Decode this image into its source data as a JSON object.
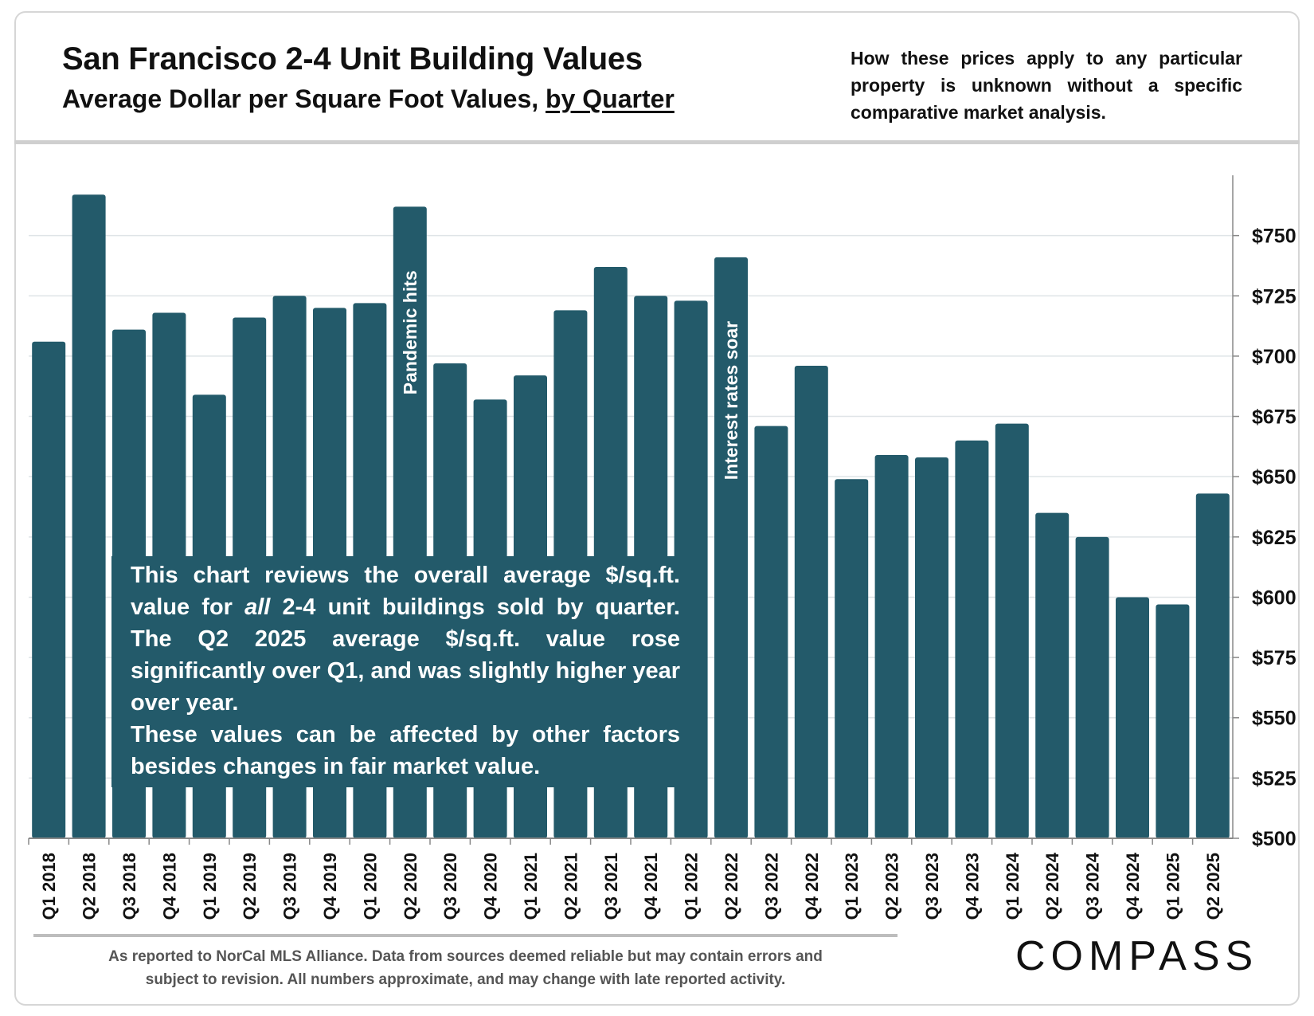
{
  "header": {
    "title": "San Francisco 2-4 Unit Building Values",
    "subtitle_prefix": "Average Dollar per Square Foot Values, ",
    "subtitle_underlined": "by Quarter",
    "disclaimer": "How these prices apply to any particular property is unknown without a specific comparative market analysis."
  },
  "note": {
    "p1_before": "This chart reviews the overall average $/sq.ft. value for ",
    "p1_italic": "all",
    "p1_after": " 2-4 unit buildings sold by quarter. The Q2 2025 average $/sq.ft. value rose significantly over Q1, and was slightly higher year over year.",
    "p2": "These values can be affected by other factors besides changes in fair market value."
  },
  "footer": {
    "line1": "As reported to NorCal MLS Alliance. Data from sources deemed reliable but may contain errors and",
    "line2": "subject to revision. All numbers approximate, and may change with late reported activity."
  },
  "logo": "COMPASS",
  "colors": {
    "bar": "#235a6a",
    "grid": "#dfe4e7"
  },
  "chart_data": {
    "type": "bar",
    "categories": [
      "Q1 2018",
      "Q2 2018",
      "Q3 2018",
      "Q4 2018",
      "Q1 2019",
      "Q2 2019",
      "Q3 2019",
      "Q4 2019",
      "Q1 2020",
      "Q2 2020",
      "Q3 2020",
      "Q4 2020",
      "Q1 2021",
      "Q2 2021",
      "Q3 2021",
      "Q4 2021",
      "Q1 2022",
      "Q2 2022",
      "Q3 2022",
      "Q4 2022",
      "Q1 2023",
      "Q2 2023",
      "Q3 2023",
      "Q4 2023",
      "Q1 2024",
      "Q2 2024",
      "Q3 2024",
      "Q4 2024",
      "Q1 2025",
      "Q2 2025"
    ],
    "values": [
      706,
      767,
      711,
      718,
      684,
      716,
      725,
      720,
      722,
      762,
      697,
      682,
      692,
      719,
      737,
      725,
      723,
      741,
      671,
      696,
      649,
      659,
      658,
      665,
      672,
      635,
      625,
      600,
      597,
      643
    ],
    "ylim": [
      500,
      775
    ],
    "yticks": [
      500,
      525,
      550,
      575,
      600,
      625,
      650,
      675,
      700,
      725,
      750
    ],
    "ytick_labels": [
      "$500",
      "$525",
      "$550",
      "$575",
      "$600",
      "$625",
      "$650",
      "$675",
      "$700",
      "$725",
      "$750"
    ],
    "y_axis_side": "right",
    "grid": true,
    "annotations": [
      {
        "category": "Q2 2020",
        "text": "Pandemic hits"
      },
      {
        "category": "Q2 2022",
        "text": "Interest rates soar"
      }
    ]
  }
}
